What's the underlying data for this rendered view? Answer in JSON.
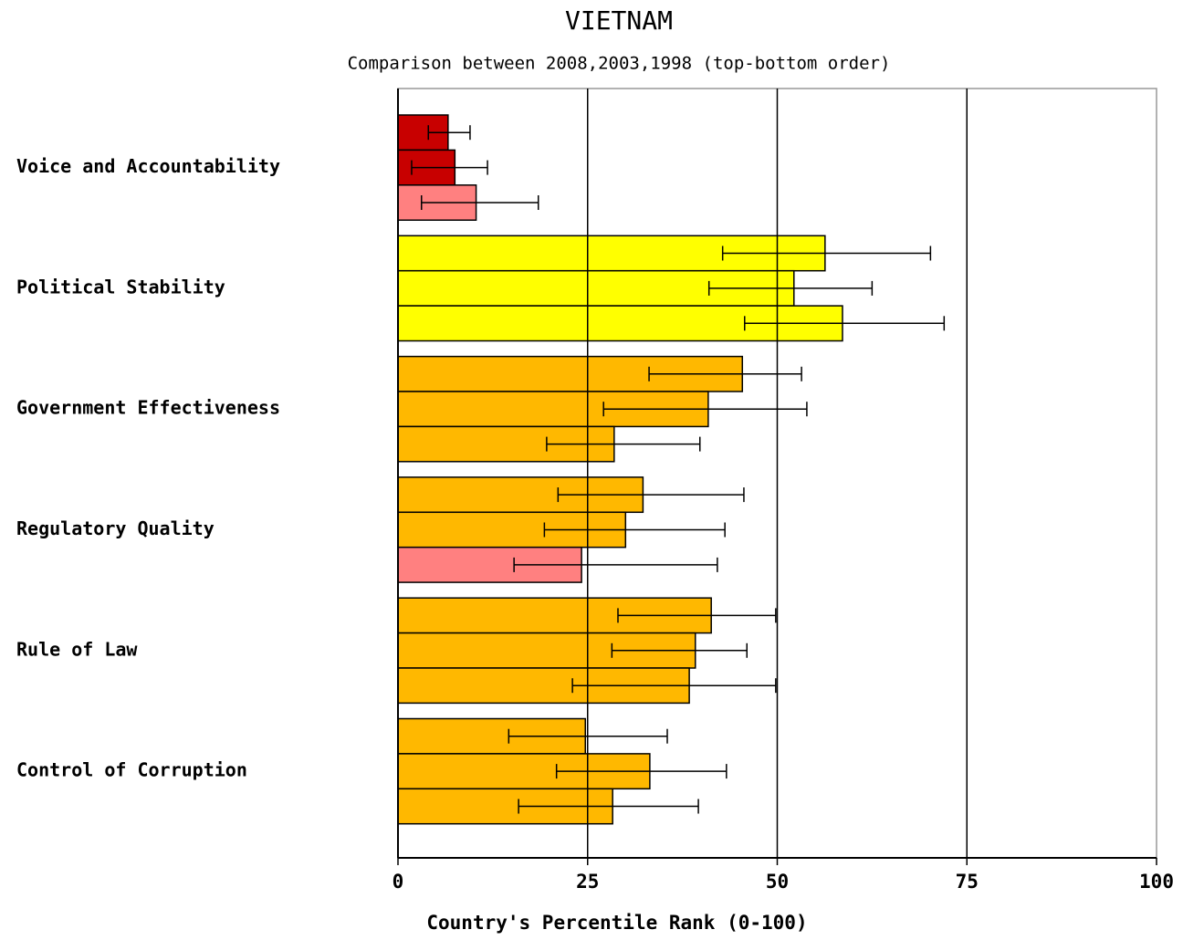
{
  "chart_data": {
    "type": "bar",
    "orientation": "horizontal",
    "title": "VIETNAM",
    "subtitle": "Comparison between 2008,2003,1998 (top-bottom order)",
    "x_label": "Country's Percentile Rank (0-100)",
    "categories": [
      "Voice and Accountability",
      "Political Stability",
      "Government Effectiveness",
      "Regulatory Quality",
      "Rule of Law",
      "Control of Corruption"
    ],
    "series": [
      {
        "values": [
          6.6,
          56.3,
          45.4,
          32.3,
          41.3,
          24.7
        ],
        "lower": [
          4.0,
          42.8,
          33.1,
          21.1,
          29.0,
          14.6
        ],
        "upper": [
          9.5,
          70.2,
          53.2,
          45.6,
          49.8,
          35.5
        ],
        "colors": [
          "#c80000",
          "#ffff00",
          "#ffb800",
          "#ffb800",
          "#ffb800",
          "#ffb800"
        ]
      },
      {
        "values": [
          7.5,
          52.2,
          40.9,
          30.0,
          39.2,
          33.2
        ],
        "lower": [
          1.8,
          41.0,
          27.1,
          19.3,
          28.2,
          20.9
        ],
        "upper": [
          11.8,
          62.5,
          53.9,
          43.1,
          46.0,
          43.3
        ],
        "colors": [
          "#c80000",
          "#ffff00",
          "#ffb800",
          "#ffb800",
          "#ffb800",
          "#ffb800"
        ]
      },
      {
        "values": [
          10.3,
          58.6,
          28.5,
          24.2,
          38.4,
          28.3
        ],
        "lower": [
          3.1,
          45.7,
          19.6,
          15.3,
          23.0,
          15.9
        ],
        "upper": [
          18.5,
          72.0,
          39.8,
          42.1,
          49.8,
          39.6
        ],
        "colors": [
          "#ff8080",
          "#ffff00",
          "#ffb800",
          "#ff8080",
          "#ffb800",
          "#ffb800"
        ]
      }
    ],
    "xlim": [
      0,
      100
    ],
    "xticks": [
      0,
      25,
      50,
      75,
      100
    ],
    "grid": true
  }
}
